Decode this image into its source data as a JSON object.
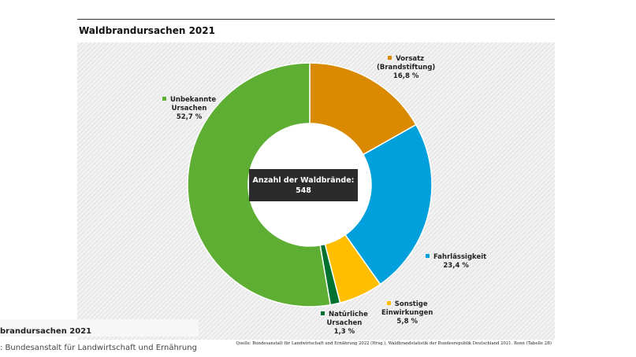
{
  "chart_data": {
    "type": "pie",
    "title": "Waldbrandursachen 2021",
    "center_label": "Anzahl der Waldbrände:",
    "center_value": "548",
    "slices": [
      {
        "key": "vorsatz",
        "label": "Vorsatz\n(Brandstiftung)",
        "value": 16.8,
        "value_label": "16,8 %",
        "color": "#d98a00"
      },
      {
        "key": "fahrlaessigkeit",
        "label": "Fahrlässigkeit",
        "value": 23.4,
        "value_label": "23,4 %",
        "color": "#00a0dd"
      },
      {
        "key": "sonstige",
        "label": "Sonstige\nEinwirkungen",
        "value": 5.8,
        "value_label": "5,8 %",
        "color": "#ffbe00"
      },
      {
        "key": "natuerliche",
        "label": "Natürliche\nUrsachen",
        "value": 1.3,
        "value_label": "1,3 %",
        "color": "#00712e"
      },
      {
        "key": "unbekannte",
        "label": "Unbekannte\nUrsachen",
        "value": 52.7,
        "value_label": "52,7 %",
        "color": "#5fae34"
      }
    ],
    "source": "Quelle: Bundesanstalt für Landwirtschaft und Ernährung 2022 (Hrsg.), Waldbrandstatistik der Bundesrepublik Deutschland 2021. Bonn (Tabelle 2B)"
  },
  "caption": {
    "title": "brandursachen 2021",
    "source": ": Bundesanstalt für Landwirtschaft und Ernährung"
  }
}
